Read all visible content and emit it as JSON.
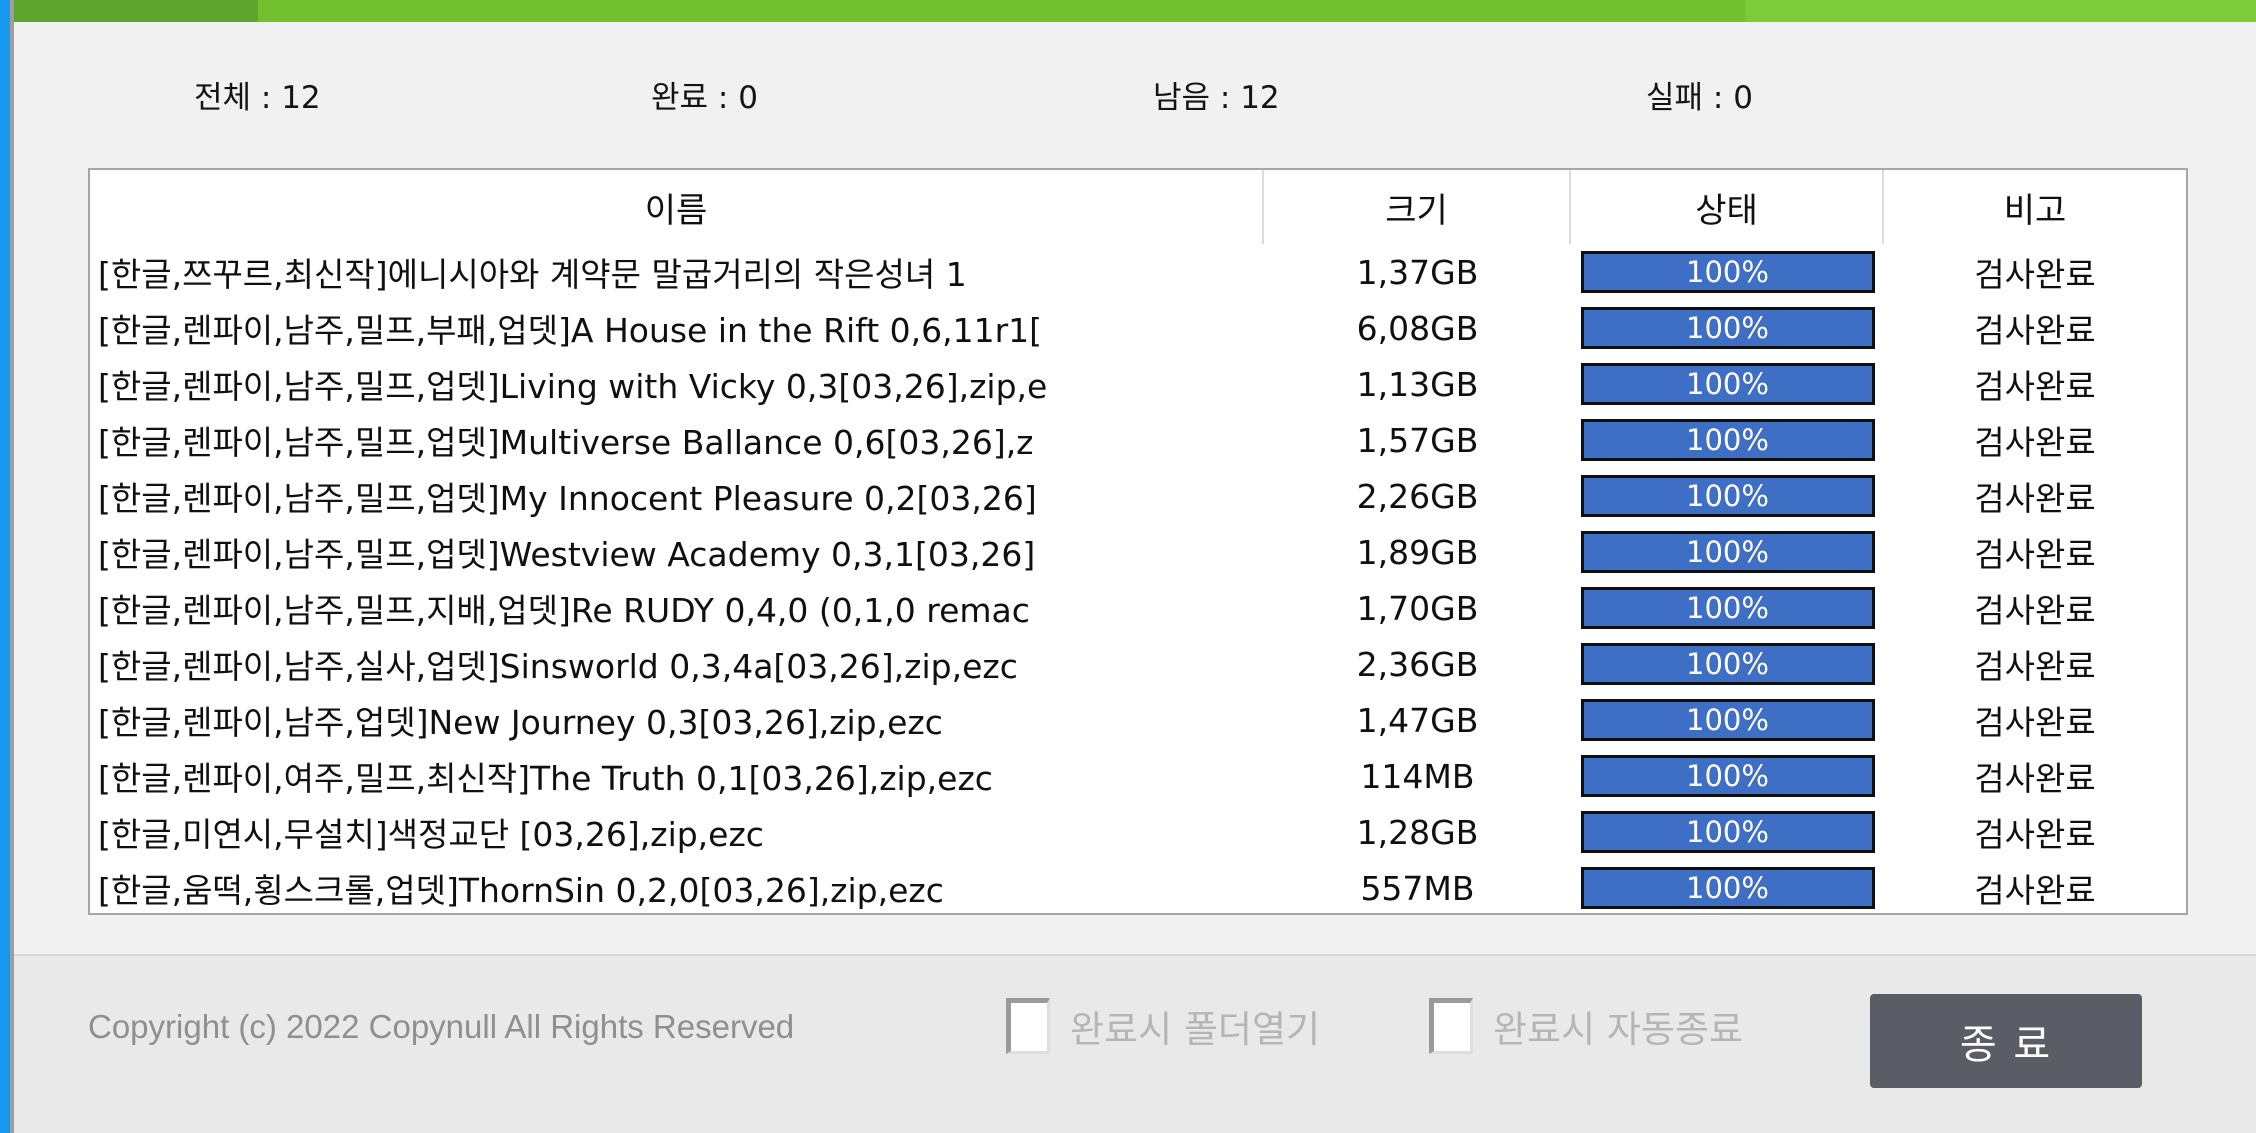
{
  "colors": {
    "edge_stripe_blue": "#1899f0",
    "titlebar_green_dark": "#5fa42c",
    "titlebar_green_mid": "#73c02f",
    "titlebar_green_light": "#7ecb39",
    "progress_fill_blue": "#3f6ec5",
    "progress_border": "#101010",
    "exit_button_bg": "#5a5d66",
    "footer_bg": "#e9e9e9",
    "body_bg": "#f1f1f1"
  },
  "stats": {
    "total": {
      "label": "전체",
      "value": 12,
      "text": "전체 : 12"
    },
    "done": {
      "label": "완료",
      "value": 0,
      "text": "완료 : 0"
    },
    "remain": {
      "label": "남음",
      "value": 12,
      "text": "남음 : 12"
    },
    "failed": {
      "label": "실패",
      "value": 0,
      "text": "실패 : 0"
    }
  },
  "table": {
    "columns": [
      "이름",
      "크기",
      "상태",
      "비고"
    ],
    "rows": [
      {
        "name": "[한글,쯔꾸르,최신작]에니시아와 계약문 말굽거리의 작은성녀 1",
        "size": "1,37GB",
        "progress_percent": 100,
        "progress_text": "100%",
        "remark": "검사완료"
      },
      {
        "name": "[한글,렌파이,남주,밀프,부패,업뎃]A House in the Rift 0,6,11r1[",
        "size": "6,08GB",
        "progress_percent": 100,
        "progress_text": "100%",
        "remark": "검사완료"
      },
      {
        "name": "[한글,렌파이,남주,밀프,업뎃]Living with Vicky 0,3[03,26],zip,e",
        "size": "1,13GB",
        "progress_percent": 100,
        "progress_text": "100%",
        "remark": "검사완료"
      },
      {
        "name": "[한글,렌파이,남주,밀프,업뎃]Multiverse Ballance 0,6[03,26],z",
        "size": "1,57GB",
        "progress_percent": 100,
        "progress_text": "100%",
        "remark": "검사완료"
      },
      {
        "name": "[한글,렌파이,남주,밀프,업뎃]My Innocent Pleasure 0,2[03,26]",
        "size": "2,26GB",
        "progress_percent": 100,
        "progress_text": "100%",
        "remark": "검사완료"
      },
      {
        "name": "[한글,렌파이,남주,밀프,업뎃]Westview Academy 0,3,1[03,26]",
        "size": "1,89GB",
        "progress_percent": 100,
        "progress_text": "100%",
        "remark": "검사완료"
      },
      {
        "name": "[한글,렌파이,남주,밀프,지배,업뎃]Re RUDY 0,4,0 (0,1,0 remac",
        "size": "1,70GB",
        "progress_percent": 100,
        "progress_text": "100%",
        "remark": "검사완료"
      },
      {
        "name": "[한글,렌파이,남주,실사,업뎃]Sinsworld 0,3,4a[03,26],zip,ezc",
        "size": "2,36GB",
        "progress_percent": 100,
        "progress_text": "100%",
        "remark": "검사완료"
      },
      {
        "name": "[한글,렌파이,남주,업뎃]New Journey 0,3[03,26],zip,ezc",
        "size": "1,47GB",
        "progress_percent": 100,
        "progress_text": "100%",
        "remark": "검사완료"
      },
      {
        "name": "[한글,렌파이,여주,밀프,최신작]The Truth 0,1[03,26],zip,ezc",
        "size": "114MB",
        "progress_percent": 100,
        "progress_text": "100%",
        "remark": "검사완료"
      },
      {
        "name": "[한글,미연시,무설치]색정교단 [03,26],zip,ezc",
        "size": "1,28GB",
        "progress_percent": 100,
        "progress_text": "100%",
        "remark": "검사완료"
      },
      {
        "name": "[한글,움떡,횡스크롤,업뎃]ThornSin 0,2,0[03,26],zip,ezc",
        "size": "557MB",
        "progress_percent": 100,
        "progress_text": "100%",
        "remark": "검사완료"
      }
    ]
  },
  "footer": {
    "copyright": "Copyright (c) 2022 Copynull All Rights Reserved",
    "checkboxes": [
      {
        "label": "완료시 폴더열기",
        "checked": false
      },
      {
        "label": "완료시 자동종료",
        "checked": false
      }
    ],
    "exit_button_label": "종 료"
  }
}
